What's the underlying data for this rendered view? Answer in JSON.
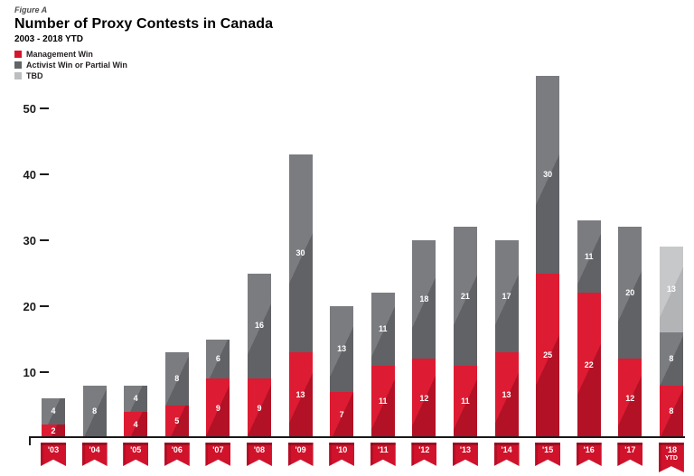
{
  "figure_label": "Figure A",
  "title": "Number of Proxy Contests in Canada",
  "subtitle": "2003 - 2018 YTD",
  "legend": [
    {
      "label": "Management Win",
      "color": "#d6152c"
    },
    {
      "label": "Activist Win or Partial Win",
      "color": "#636466"
    },
    {
      "label": "TBD",
      "color": "#bcbec0"
    }
  ],
  "colors": {
    "management_red": "#d6152c",
    "activist_gray": "#6d6e71",
    "tbd_light_gray": "#bcbec0",
    "axis_black": "#1a1a1a",
    "pennant_red": "#d0122b",
    "label_white": "#ffffff"
  },
  "chart_data": {
    "type": "bar",
    "stacked": true,
    "title": "Number of Proxy Contests in Canada",
    "subtitle": "2003 - 2018 YTD",
    "xlabel": "",
    "ylabel": "",
    "grid": false,
    "legend_position": "top-left",
    "ylim": [
      0,
      55
    ],
    "yticks": [
      10,
      20,
      30,
      40,
      50
    ],
    "categories": [
      {
        "label": "'03"
      },
      {
        "label": "'04"
      },
      {
        "label": "'05"
      },
      {
        "label": "'06"
      },
      {
        "label": "'07"
      },
      {
        "label": "'08"
      },
      {
        "label": "'09"
      },
      {
        "label": "'10"
      },
      {
        "label": "'11"
      },
      {
        "label": "'12"
      },
      {
        "label": "'13"
      },
      {
        "label": "'14"
      },
      {
        "label": "'15"
      },
      {
        "label": "'16"
      },
      {
        "label": "'17"
      },
      {
        "label": "'18",
        "sublabel": "YTD"
      }
    ],
    "series": [
      {
        "name": "Management Win",
        "values": [
          2,
          0,
          4,
          5,
          9,
          9,
          13,
          7,
          11,
          12,
          11,
          13,
          25,
          22,
          12,
          8
        ]
      },
      {
        "name": "Activist Win or Partial Win",
        "values": [
          4,
          8,
          4,
          8,
          6,
          16,
          30,
          13,
          11,
          18,
          21,
          17,
          30,
          11,
          20,
          8
        ]
      },
      {
        "name": "TBD",
        "values": [
          0,
          0,
          0,
          0,
          0,
          0,
          0,
          0,
          0,
          0,
          0,
          0,
          0,
          0,
          0,
          13
        ]
      }
    ],
    "totals": [
      6,
      8,
      8,
      13,
      15,
      25,
      43,
      20,
      22,
      30,
      32,
      30,
      55,
      33,
      32,
      29
    ]
  }
}
